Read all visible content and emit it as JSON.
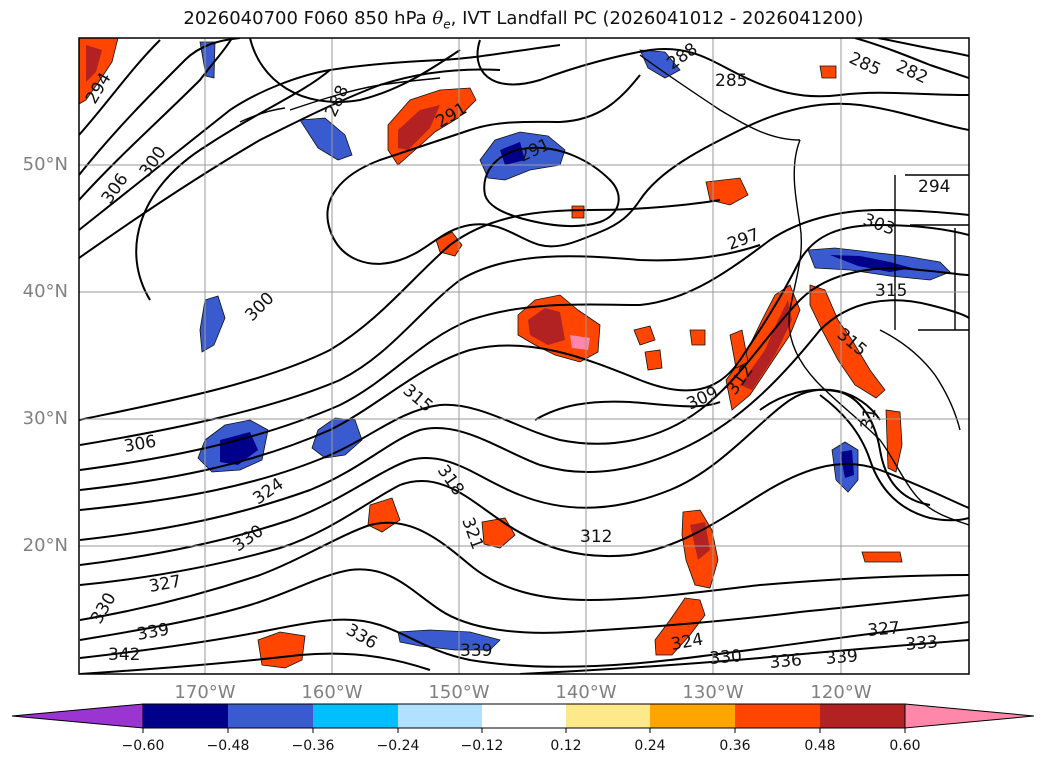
{
  "figure": {
    "title_pre": "2026040700 F060 850 hPa ",
    "title_sym": "θ",
    "title_sub": "e",
    "title_post": ", IVT Landfall PC (2026041012 - 2026041200)"
  },
  "axes": {
    "lat_labels": [
      "50°N",
      "40°N",
      "30°N",
      "20°N"
    ],
    "lon_labels": [
      "170°W",
      "160°W",
      "150°W",
      "140°W",
      "130°W",
      "120°W"
    ]
  },
  "contour_labels": [
    "285",
    "282",
    "285",
    "288",
    "288",
    "294",
    "291",
    "291",
    "300",
    "306",
    "303",
    "294",
    "297",
    "300",
    "315",
    "309",
    "312",
    "306",
    "324",
    "318",
    "321",
    "312",
    "315",
    "315",
    "31",
    "330",
    "327",
    "330",
    "336",
    "339",
    "342",
    "339",
    "324",
    "330",
    "336",
    "339",
    "327",
    "333"
  ],
  "colorbar": {
    "ticks": [
      "−0.60",
      "−0.48",
      "−0.36",
      "−0.24",
      "−0.12",
      "0.12",
      "0.24",
      "0.36",
      "0.48",
      "0.60"
    ],
    "colors": [
      "#9b35d1",
      "#00008b",
      "#3a5bd0",
      "#00bfff",
      "#b0e2ff",
      "#ffffff",
      "#fde98a",
      "#ffa500",
      "#ff4500",
      "#b22222",
      "#ff88aa"
    ]
  }
}
